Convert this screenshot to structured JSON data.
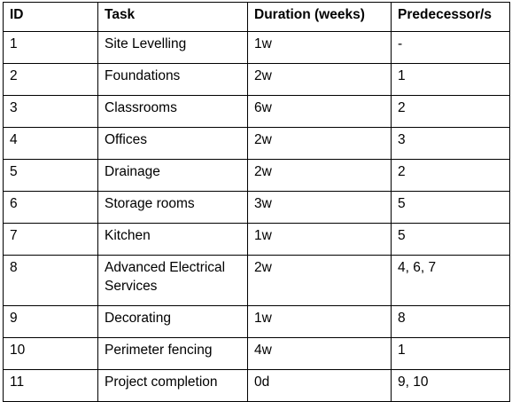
{
  "table": {
    "headers": [
      "ID",
      "Task",
      "Duration (weeks)",
      "Predecessor/s"
    ],
    "rows": [
      [
        "1",
        "Site Levelling",
        "1w",
        "-"
      ],
      [
        "2",
        "Foundations",
        "2w",
        "1"
      ],
      [
        "3",
        "Classrooms",
        "6w",
        "2"
      ],
      [
        "4",
        "Offices",
        "2w",
        "3"
      ],
      [
        "5",
        "Drainage",
        "2w",
        "2"
      ],
      [
        "6",
        "Storage rooms",
        "3w",
        "5"
      ],
      [
        "7",
        "Kitchen",
        "1w",
        "5"
      ],
      [
        "8",
        "Advanced Electrical Services",
        "2w",
        "4, 6, 7"
      ],
      [
        "9",
        "Decorating",
        "1w",
        "8"
      ],
      [
        "10",
        "Perimeter fencing",
        "4w",
        "1"
      ],
      [
        "11",
        "Project completion",
        "0d",
        "9, 10"
      ]
    ]
  }
}
